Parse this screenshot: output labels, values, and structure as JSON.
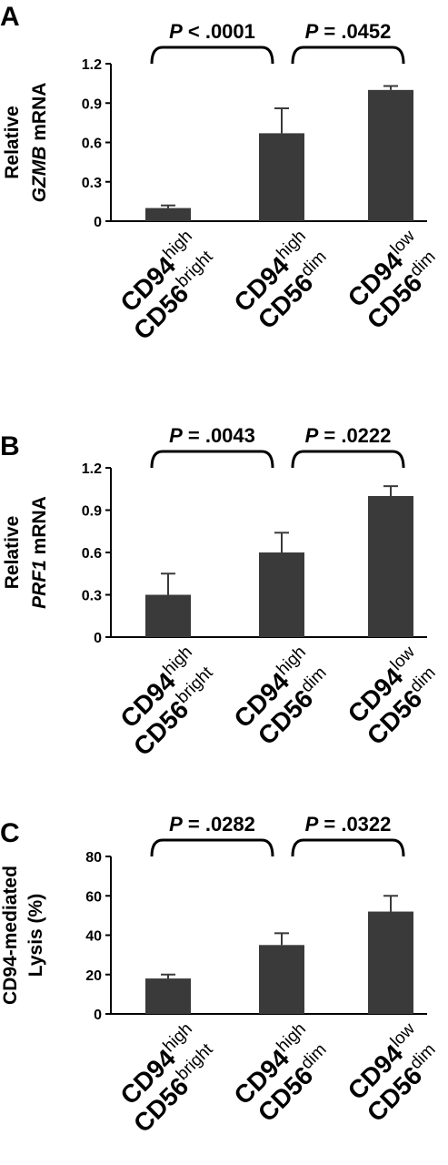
{
  "chart_data": [
    {
      "type": "bar",
      "panel": "A",
      "ylabel_parts": [
        "Relative",
        "GZMB",
        "mRNA"
      ],
      "ylim": [
        0,
        1.2
      ],
      "yticks": [
        "0",
        "0.3",
        "0.6",
        "0.9",
        "1.2"
      ],
      "ytick_values": [
        0,
        0.3,
        0.6,
        0.9,
        1.2
      ],
      "categories": [
        {
          "line1": "CD94",
          "sup1": "high",
          "line2": "CD56",
          "sup2": "bright"
        },
        {
          "line1": "CD94",
          "sup1": "high",
          "line2": "CD56",
          "sup2": "dim"
        },
        {
          "line1": "CD94",
          "sup1": "low",
          "line2": "CD56",
          "sup2": "dim"
        }
      ],
      "values": [
        0.1,
        0.67,
        1.0
      ],
      "errors": [
        0.02,
        0.19,
        0.03
      ],
      "comparisons": [
        {
          "label_p": "P",
          "label_rest": " < .0001",
          "from": 0,
          "to": 1
        },
        {
          "label_p": "P",
          "label_rest": " = .0452",
          "from": 1,
          "to": 2
        }
      ]
    },
    {
      "type": "bar",
      "panel": "B",
      "ylabel_parts": [
        "Relative",
        "PRF1",
        "mRNA"
      ],
      "ylim": [
        0,
        1.2
      ],
      "yticks": [
        "0",
        "0.3",
        "0.6",
        "0.9",
        "1.2"
      ],
      "ytick_values": [
        0,
        0.3,
        0.6,
        0.9,
        1.2
      ],
      "categories": [
        {
          "line1": "CD94",
          "sup1": "high",
          "line2": "CD56",
          "sup2": "bright"
        },
        {
          "line1": "CD94",
          "sup1": "high",
          "line2": "CD56",
          "sup2": "dim"
        },
        {
          "line1": "CD94",
          "sup1": "low",
          "line2": "CD56",
          "sup2": "dim"
        }
      ],
      "values": [
        0.3,
        0.6,
        1.0
      ],
      "errors": [
        0.15,
        0.14,
        0.07
      ],
      "comparisons": [
        {
          "label_p": "P",
          "label_rest": " = .0043",
          "from": 0,
          "to": 1
        },
        {
          "label_p": "P",
          "label_rest": "  = .0222",
          "from": 1,
          "to": 2
        }
      ]
    },
    {
      "type": "bar",
      "panel": "C",
      "ylabel_lines": [
        "CD94-mediated",
        "Lysis (%)"
      ],
      "ylim": [
        0,
        80
      ],
      "yticks": [
        "0",
        "20",
        "40",
        "60",
        "80"
      ],
      "ytick_values": [
        0,
        20,
        40,
        60,
        80
      ],
      "categories": [
        {
          "line1": "CD94",
          "sup1": "high",
          "line2": "CD56",
          "sup2": "bright"
        },
        {
          "line1": "CD94",
          "sup1": "high",
          "line2": "CD56",
          "sup2": "dim"
        },
        {
          "line1": "CD94",
          "sup1": "low",
          "line2": "CD56",
          "sup2": "dim"
        }
      ],
      "values": [
        18,
        35,
        52
      ],
      "errors": [
        2,
        6,
        8
      ],
      "comparisons": [
        {
          "label_p": "P",
          "label_rest": " = .0282",
          "from": 0,
          "to": 1
        },
        {
          "label_p": "P",
          "label_rest": " = .0322",
          "from": 1,
          "to": 2
        }
      ]
    }
  ],
  "colors": {
    "bar": "#3a3a3a",
    "axis": "#000000"
  }
}
